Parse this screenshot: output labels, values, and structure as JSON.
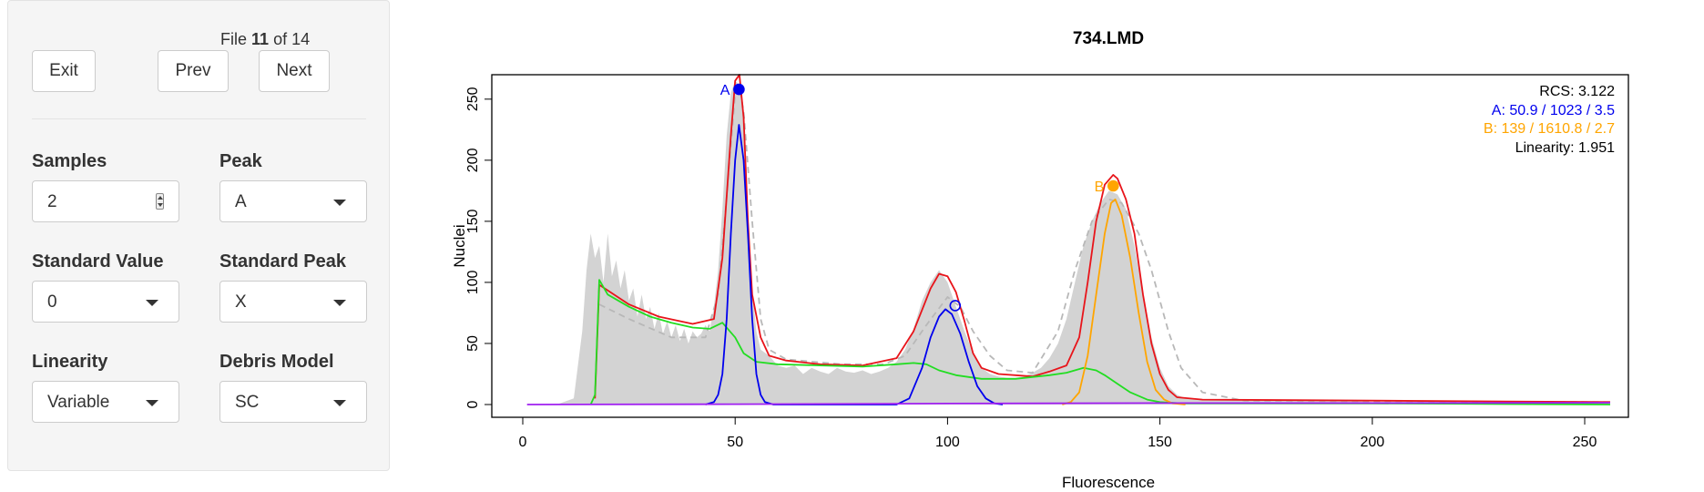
{
  "controls": {
    "file_prefix": "File",
    "file_current": "11",
    "file_mid": "of",
    "file_total": "14",
    "exit_label": "Exit",
    "prev_label": "Prev",
    "next_label": "Next",
    "samples_label": "Samples",
    "samples_value": "2",
    "peak_label": "Peak",
    "peak_value": "A",
    "standard_value_label": "Standard Value",
    "standard_value_value": "0",
    "standard_peak_label": "Standard Peak",
    "standard_peak_value": "X",
    "linearity_label": "Linearity",
    "linearity_value": "Variable",
    "debris_label": "Debris Model",
    "debris_value": "SC"
  },
  "colors": {
    "histogram": "#d3d3d3",
    "fit": "#e8141a",
    "peak_a": "#0000ee",
    "peak_b": "#ffa500",
    "debris": "#22dd22",
    "aggregate": "#a020f0",
    "init": "#b8b8b8"
  },
  "chart_data": {
    "type": "line",
    "title": "734.LMD",
    "xlabel": "Fluorescence",
    "ylabel": "Nuclei",
    "xlim": [
      0,
      256
    ],
    "ylim": [
      0,
      270
    ],
    "xticks": [
      0,
      50,
      100,
      150,
      200,
      250
    ],
    "yticks": [
      0,
      50,
      100,
      150,
      200,
      250
    ],
    "stats": {
      "rcs": "RCS:  3.122",
      "a": "A:  50.9 / 1023 / 3.5",
      "b": "B:  139 / 1610.8 / 2.7",
      "linearity": "Linearity:  1.951"
    },
    "markers": [
      {
        "label": "A",
        "x": 50.9,
        "y": 258,
        "filled": true,
        "color": "#0000ee"
      },
      {
        "label": "B",
        "x": 139,
        "y": 179,
        "filled": true,
        "color": "#ffa500"
      },
      {
        "label": "",
        "x": 101.8,
        "y": 81,
        "filled": false,
        "color": "#0000ee"
      }
    ],
    "series": [
      {
        "name": "Histogram",
        "kind": "area",
        "color": "#d3d3d3",
        "points": [
          [
            1,
            0
          ],
          [
            8,
            0
          ],
          [
            12,
            5
          ],
          [
            14,
            60
          ],
          [
            15,
            110
          ],
          [
            16,
            140
          ],
          [
            17,
            120
          ],
          [
            18,
            130
          ],
          [
            19,
            100
          ],
          [
            20,
            140
          ],
          [
            21,
            105
          ],
          [
            22,
            118
          ],
          [
            23,
            95
          ],
          [
            24,
            110
          ],
          [
            25,
            85
          ],
          [
            26,
            95
          ],
          [
            27,
            72
          ],
          [
            28,
            90
          ],
          [
            29,
            70
          ],
          [
            30,
            80
          ],
          [
            31,
            62
          ],
          [
            32,
            75
          ],
          [
            33,
            58
          ],
          [
            34,
            68
          ],
          [
            35,
            55
          ],
          [
            36,
            65
          ],
          [
            37,
            52
          ],
          [
            38,
            62
          ],
          [
            39,
            50
          ],
          [
            40,
            60
          ],
          [
            41,
            55
          ],
          [
            42,
            58
          ],
          [
            43,
            65
          ],
          [
            44,
            60
          ],
          [
            45,
            80
          ],
          [
            46,
            110
          ],
          [
            47,
            160
          ],
          [
            48,
            220
          ],
          [
            49,
            255
          ],
          [
            50,
            265
          ],
          [
            51,
            262
          ],
          [
            52,
            230
          ],
          [
            53,
            160
          ],
          [
            54,
            95
          ],
          [
            55,
            60
          ],
          [
            56,
            45
          ],
          [
            58,
            40
          ],
          [
            60,
            32
          ],
          [
            62,
            30
          ],
          [
            64,
            32
          ],
          [
            66,
            25
          ],
          [
            68,
            30
          ],
          [
            70,
            27
          ],
          [
            72,
            25
          ],
          [
            74,
            30
          ],
          [
            76,
            27
          ],
          [
            78,
            26
          ],
          [
            80,
            28
          ],
          [
            82,
            25
          ],
          [
            84,
            27
          ],
          [
            86,
            30
          ],
          [
            88,
            35
          ],
          [
            90,
            45
          ],
          [
            92,
            62
          ],
          [
            94,
            85
          ],
          [
            96,
            100
          ],
          [
            98,
            110
          ],
          [
            100,
            100
          ],
          [
            102,
            80
          ],
          [
            104,
            60
          ],
          [
            106,
            42
          ],
          [
            108,
            30
          ],
          [
            110,
            25
          ],
          [
            112,
            23
          ],
          [
            114,
            22
          ],
          [
            116,
            22
          ],
          [
            118,
            23
          ],
          [
            120,
            26
          ],
          [
            122,
            30
          ],
          [
            124,
            38
          ],
          [
            126,
            50
          ],
          [
            128,
            70
          ],
          [
            130,
            100
          ],
          [
            132,
            130
          ],
          [
            134,
            150
          ],
          [
            136,
            165
          ],
          [
            138,
            175
          ],
          [
            140,
            172
          ],
          [
            142,
            160
          ],
          [
            144,
            130
          ],
          [
            146,
            90
          ],
          [
            148,
            55
          ],
          [
            150,
            30
          ],
          [
            152,
            15
          ],
          [
            154,
            8
          ],
          [
            156,
            5
          ],
          [
            160,
            4
          ],
          [
            170,
            4
          ],
          [
            180,
            3
          ],
          [
            190,
            4
          ],
          [
            200,
            2
          ],
          [
            210,
            3
          ],
          [
            220,
            2
          ],
          [
            230,
            2
          ],
          [
            240,
            2
          ],
          [
            250,
            2
          ],
          [
            255,
            2
          ],
          [
            256,
            0
          ]
        ]
      },
      {
        "name": "Initial fit",
        "kind": "dashed",
        "color": "#b8b8b8",
        "points": [
          [
            18,
            82
          ],
          [
            25,
            70
          ],
          [
            35,
            55
          ],
          [
            43,
            55
          ],
          [
            46,
            90
          ],
          [
            48,
            170
          ],
          [
            50,
            255
          ],
          [
            51,
            260
          ],
          [
            52,
            240
          ],
          [
            54,
            150
          ],
          [
            56,
            70
          ],
          [
            58,
            45
          ],
          [
            62,
            37
          ],
          [
            75,
            33
          ],
          [
            85,
            33
          ],
          [
            90,
            40
          ],
          [
            95,
            65
          ],
          [
            100,
            88
          ],
          [
            103,
            80
          ],
          [
            106,
            60
          ],
          [
            110,
            40
          ],
          [
            114,
            28
          ],
          [
            120,
            26
          ],
          [
            126,
            60
          ],
          [
            130,
            110
          ],
          [
            134,
            150
          ],
          [
            138,
            168
          ],
          [
            141,
            165
          ],
          [
            145,
            140
          ],
          [
            148,
            110
          ],
          [
            152,
            60
          ],
          [
            155,
            30
          ],
          [
            160,
            10
          ],
          [
            170,
            3
          ],
          [
            256,
            2
          ]
        ]
      },
      {
        "name": "Model fit",
        "kind": "line",
        "color": "#e8141a",
        "points": [
          [
            17,
            5
          ],
          [
            18,
            98
          ],
          [
            25,
            82
          ],
          [
            32,
            72
          ],
          [
            40,
            66
          ],
          [
            45,
            70
          ],
          [
            47,
            120
          ],
          [
            49,
            220
          ],
          [
            50,
            265
          ],
          [
            51,
            270
          ],
          [
            52,
            235
          ],
          [
            53,
            150
          ],
          [
            54,
            90
          ],
          [
            56,
            55
          ],
          [
            58,
            40
          ],
          [
            62,
            36
          ],
          [
            70,
            33
          ],
          [
            80,
            32
          ],
          [
            88,
            38
          ],
          [
            92,
            60
          ],
          [
            96,
            95
          ],
          [
            98,
            107
          ],
          [
            100,
            105
          ],
          [
            102,
            92
          ],
          [
            104,
            68
          ],
          [
            106,
            42
          ],
          [
            108,
            30
          ],
          [
            112,
            25
          ],
          [
            120,
            23
          ],
          [
            124,
            27
          ],
          [
            128,
            32
          ],
          [
            131,
            55
          ],
          [
            133,
            100
          ],
          [
            135,
            150
          ],
          [
            137,
            180
          ],
          [
            139,
            188
          ],
          [
            140,
            185
          ],
          [
            142,
            168
          ],
          [
            144,
            140
          ],
          [
            146,
            90
          ],
          [
            148,
            50
          ],
          [
            150,
            25
          ],
          [
            152,
            12
          ],
          [
            154,
            6
          ],
          [
            160,
            4
          ],
          [
            256,
            2
          ]
        ]
      },
      {
        "name": "Debris",
        "kind": "line",
        "color": "#22dd22",
        "points": [
          [
            16,
            0
          ],
          [
            17,
            8
          ],
          [
            18,
            102
          ],
          [
            20,
            90
          ],
          [
            25,
            80
          ],
          [
            30,
            72
          ],
          [
            35,
            67
          ],
          [
            40,
            63
          ],
          [
            44,
            62
          ],
          [
            47,
            67
          ],
          [
            50,
            55
          ],
          [
            52,
            42
          ],
          [
            55,
            35
          ],
          [
            60,
            33
          ],
          [
            70,
            32
          ],
          [
            80,
            31
          ],
          [
            88,
            33
          ],
          [
            92,
            34
          ],
          [
            95,
            33
          ],
          [
            98,
            28
          ],
          [
            102,
            24
          ],
          [
            108,
            21
          ],
          [
            116,
            21
          ],
          [
            124,
            24
          ],
          [
            128,
            26
          ],
          [
            132,
            30
          ],
          [
            135,
            28
          ],
          [
            137,
            24
          ],
          [
            140,
            17
          ],
          [
            143,
            10
          ],
          [
            147,
            4
          ],
          [
            150,
            2
          ],
          [
            155,
            1
          ],
          [
            200,
            1
          ],
          [
            256,
            0
          ]
        ]
      },
      {
        "name": "Peak A",
        "kind": "line",
        "color": "#0000ee",
        "points": [
          [
            43,
            0
          ],
          [
            45,
            2
          ],
          [
            46,
            8
          ],
          [
            47,
            25
          ],
          [
            48,
            70
          ],
          [
            49,
            140
          ],
          [
            50,
            200
          ],
          [
            50.9,
            229
          ],
          [
            52,
            200
          ],
          [
            53,
            140
          ],
          [
            54,
            70
          ],
          [
            55,
            25
          ],
          [
            56,
            8
          ],
          [
            57,
            2
          ],
          [
            59,
            0
          ],
          [
            88,
            0
          ],
          [
            91,
            5
          ],
          [
            94,
            30
          ],
          [
            96,
            55
          ],
          [
            98,
            72
          ],
          [
            99.5,
            78
          ],
          [
            101,
            74
          ],
          [
            103,
            58
          ],
          [
            105,
            35
          ],
          [
            107,
            15
          ],
          [
            109,
            5
          ],
          [
            111,
            1
          ],
          [
            113,
            0
          ]
        ]
      },
      {
        "name": "Peak B",
        "kind": "line",
        "color": "#ffa500",
        "points": [
          [
            127,
            0
          ],
          [
            129,
            2
          ],
          [
            131,
            10
          ],
          [
            133,
            40
          ],
          [
            135,
            90
          ],
          [
            137,
            140
          ],
          [
            138.5,
            165
          ],
          [
            139.5,
            168
          ],
          [
            141,
            155
          ],
          [
            143,
            120
          ],
          [
            145,
            75
          ],
          [
            147,
            35
          ],
          [
            149,
            12
          ],
          [
            151,
            4
          ],
          [
            153,
            1
          ],
          [
            156,
            0
          ]
        ]
      },
      {
        "name": "Aggregates",
        "kind": "line",
        "color": "#a020f0",
        "points": [
          [
            1,
            0
          ],
          [
            50,
            0.3
          ],
          [
            100,
            0.8
          ],
          [
            150,
            1.2
          ],
          [
            200,
            1.2
          ],
          [
            256,
            1.5
          ]
        ]
      }
    ]
  }
}
